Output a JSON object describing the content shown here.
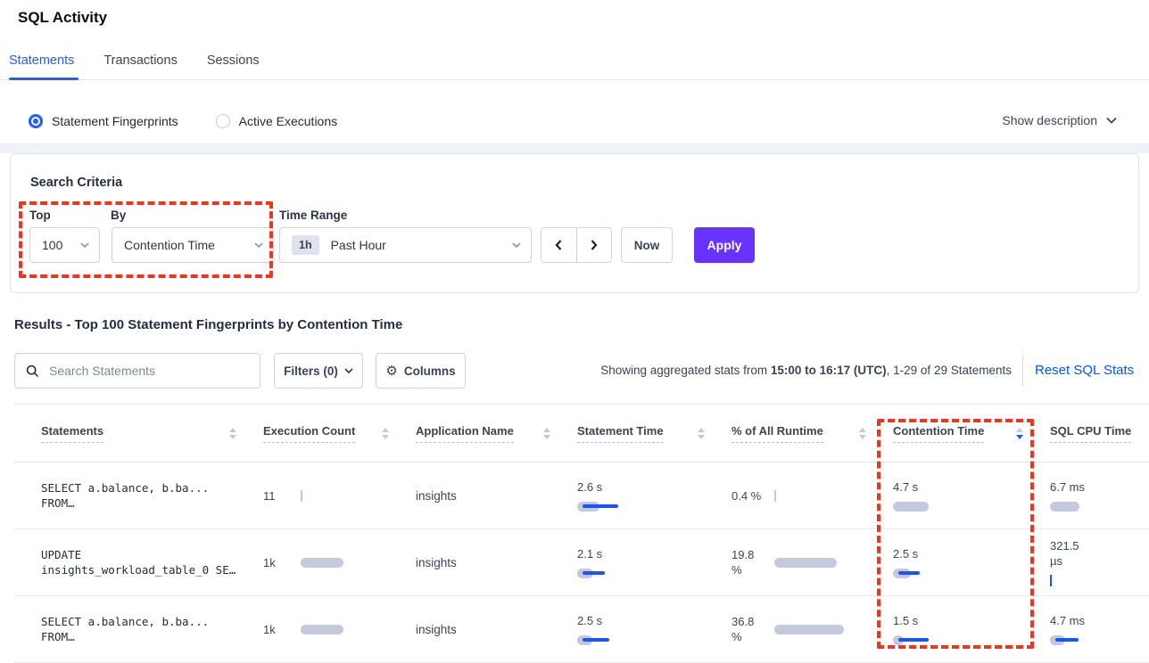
{
  "page": {
    "title": "SQL Activity"
  },
  "tabs": [
    {
      "label": "Statements",
      "active": true
    },
    {
      "label": "Transactions",
      "active": false
    },
    {
      "label": "Sessions",
      "active": false
    }
  ],
  "view_toggle": {
    "options": [
      {
        "label": "Statement Fingerprints",
        "selected": true
      },
      {
        "label": "Active Executions",
        "selected": false
      }
    ],
    "show_description": "Show description"
  },
  "search_criteria": {
    "heading": "Search Criteria",
    "top": {
      "label": "Top",
      "value": "100"
    },
    "by": {
      "label": "By",
      "value": "Contention Time"
    },
    "time_range": {
      "label": "Time Range",
      "badge": "1h",
      "value": "Past Hour"
    },
    "now_label": "Now",
    "apply_label": "Apply"
  },
  "results": {
    "heading": "Results - Top 100 Statement Fingerprints by Contention Time",
    "search_placeholder": "Search Statements",
    "filters_label": "Filters (0)",
    "columns_label": "Columns",
    "stats_prefix": "Showing aggregated stats from ",
    "stats_range": "15:00 to 16:17 (UTC)",
    "stats_suffix": ", 1-29 of 29 Statements",
    "reset_link": "Reset SQL Stats"
  },
  "table": {
    "columns": [
      {
        "label": "Statements",
        "sort": "both"
      },
      {
        "label": "Execution Count",
        "sort": "both"
      },
      {
        "label": "Application Name",
        "sort": "both"
      },
      {
        "label": "Statement Time",
        "sort": "both"
      },
      {
        "label": "% of All Runtime",
        "sort": "both"
      },
      {
        "label": "Contention Time",
        "sort": "desc"
      },
      {
        "label": "SQL CPU Time",
        "sort": "both"
      }
    ],
    "rows": [
      {
        "statement": [
          "SELECT a.balance, b.ba...",
          "FROM…"
        ],
        "exec": {
          "label": "11",
          "layout": "inline",
          "bar": {
            "kind": "tick",
            "color": "gray"
          }
        },
        "app": "insights",
        "stmt_time": {
          "label": "2.6 s",
          "layout": "stacked",
          "bar": {
            "kind": "bar",
            "gray": 25,
            "blue": 40
          }
        },
        "pct": {
          "label": "0.4 %",
          "layout": "inline",
          "bar": {
            "kind": "tick",
            "color": "gray"
          }
        },
        "contention": {
          "label": "4.7 s",
          "layout": "stacked",
          "bar": {
            "kind": "bar",
            "gray": 40,
            "blue": 0
          }
        },
        "cpu": {
          "label": "6.7 ms",
          "layout": "stacked",
          "bar": {
            "kind": "bar",
            "gray": 33,
            "blue": 0
          }
        }
      },
      {
        "statement": [
          "UPDATE",
          "insights_workload_table_0 SE…"
        ],
        "exec": {
          "label": "1k",
          "layout": "inline",
          "bar": {
            "kind": "bar",
            "gray": 48,
            "blue": 0
          }
        },
        "app": "insights",
        "stmt_time": {
          "label": "2.1 s",
          "layout": "stacked",
          "bar": {
            "kind": "bar",
            "gray": 18,
            "blue": 25
          }
        },
        "pct": {
          "label": "19.8 %",
          "layout": "inline",
          "bar": {
            "kind": "bar",
            "gray": 70,
            "blue": 0
          }
        },
        "contention": {
          "label": "2.5 s",
          "layout": "stacked",
          "bar": {
            "kind": "bar",
            "gray": 20,
            "blue": 24
          }
        },
        "cpu": {
          "label": "321.5 µs",
          "layout": "stacked",
          "bar": {
            "kind": "tick",
            "color": "blue"
          }
        }
      },
      {
        "statement": [
          "SELECT a.balance, b.ba...",
          "FROM…"
        ],
        "exec": {
          "label": "1k",
          "layout": "inline",
          "bar": {
            "kind": "bar",
            "gray": 48,
            "blue": 0
          }
        },
        "app": "insights",
        "stmt_time": {
          "label": "2.5 s",
          "layout": "stacked",
          "bar": {
            "kind": "bar",
            "gray": 17,
            "blue": 30
          }
        },
        "pct": {
          "label": "36.8 %",
          "layout": "inline",
          "bar": {
            "kind": "bar",
            "gray": 78,
            "blue": 0
          }
        },
        "contention": {
          "label": "1.5 s",
          "layout": "stacked",
          "bar": {
            "kind": "bar",
            "gray": 12,
            "blue": 34
          }
        },
        "cpu": {
          "label": "4.7 ms",
          "layout": "stacked",
          "bar": {
            "kind": "bar",
            "gray": 17,
            "blue": 26
          }
        }
      }
    ]
  },
  "colors": {
    "accent_blue": "#1f5eff",
    "link_blue": "#0055ff",
    "apply_purple": "#6933ff",
    "bar_gray": "#c3cade",
    "bar_blue": "#1d53ff",
    "highlight_red": "#f2331d"
  }
}
